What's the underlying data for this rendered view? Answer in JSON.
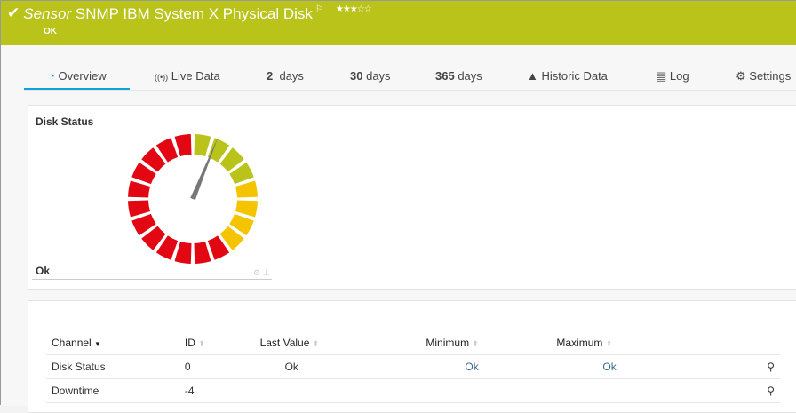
{
  "header": {
    "type": "Sensor",
    "name": "SNMP IBM System X Physical Disk",
    "status": "OK",
    "stars": "★★★☆☆",
    "flag": "⚐",
    "check": "✔",
    "color": "#b9c31a"
  },
  "tabs": [
    {
      "icon": "◔",
      "label": "Overview"
    },
    {
      "icon": "((•))",
      "label": "Live Data"
    },
    {
      "num": "2",
      "label": "days"
    },
    {
      "num": "30",
      "label": "days"
    },
    {
      "num": "365",
      "label": "days"
    },
    {
      "icon": "▲",
      "label": "Historic Data"
    },
    {
      "icon": "▤",
      "label": "Log"
    },
    {
      "icon": "⚙",
      "label": "Settings"
    }
  ],
  "gauge": {
    "title": "Disk Status",
    "value": "Ok",
    "zones": [
      {
        "color": "#b9c31a",
        "count": 4
      },
      {
        "color": "#f5c400",
        "count": 4
      },
      {
        "color": "#e30613",
        "count": 12
      }
    ],
    "needle_fraction": 0.03,
    "tools": "⚙ ⊥"
  },
  "table": {
    "headers": [
      "Channel",
      "ID",
      "Last Value",
      "Minimum",
      "Maximum"
    ],
    "rows": [
      {
        "channel": "Disk Status",
        "id": "0",
        "last": "Ok",
        "min": "Ok",
        "max": "Ok"
      },
      {
        "channel": "Downtime",
        "id": "-4",
        "last": "",
        "min": "",
        "max": ""
      }
    ]
  }
}
